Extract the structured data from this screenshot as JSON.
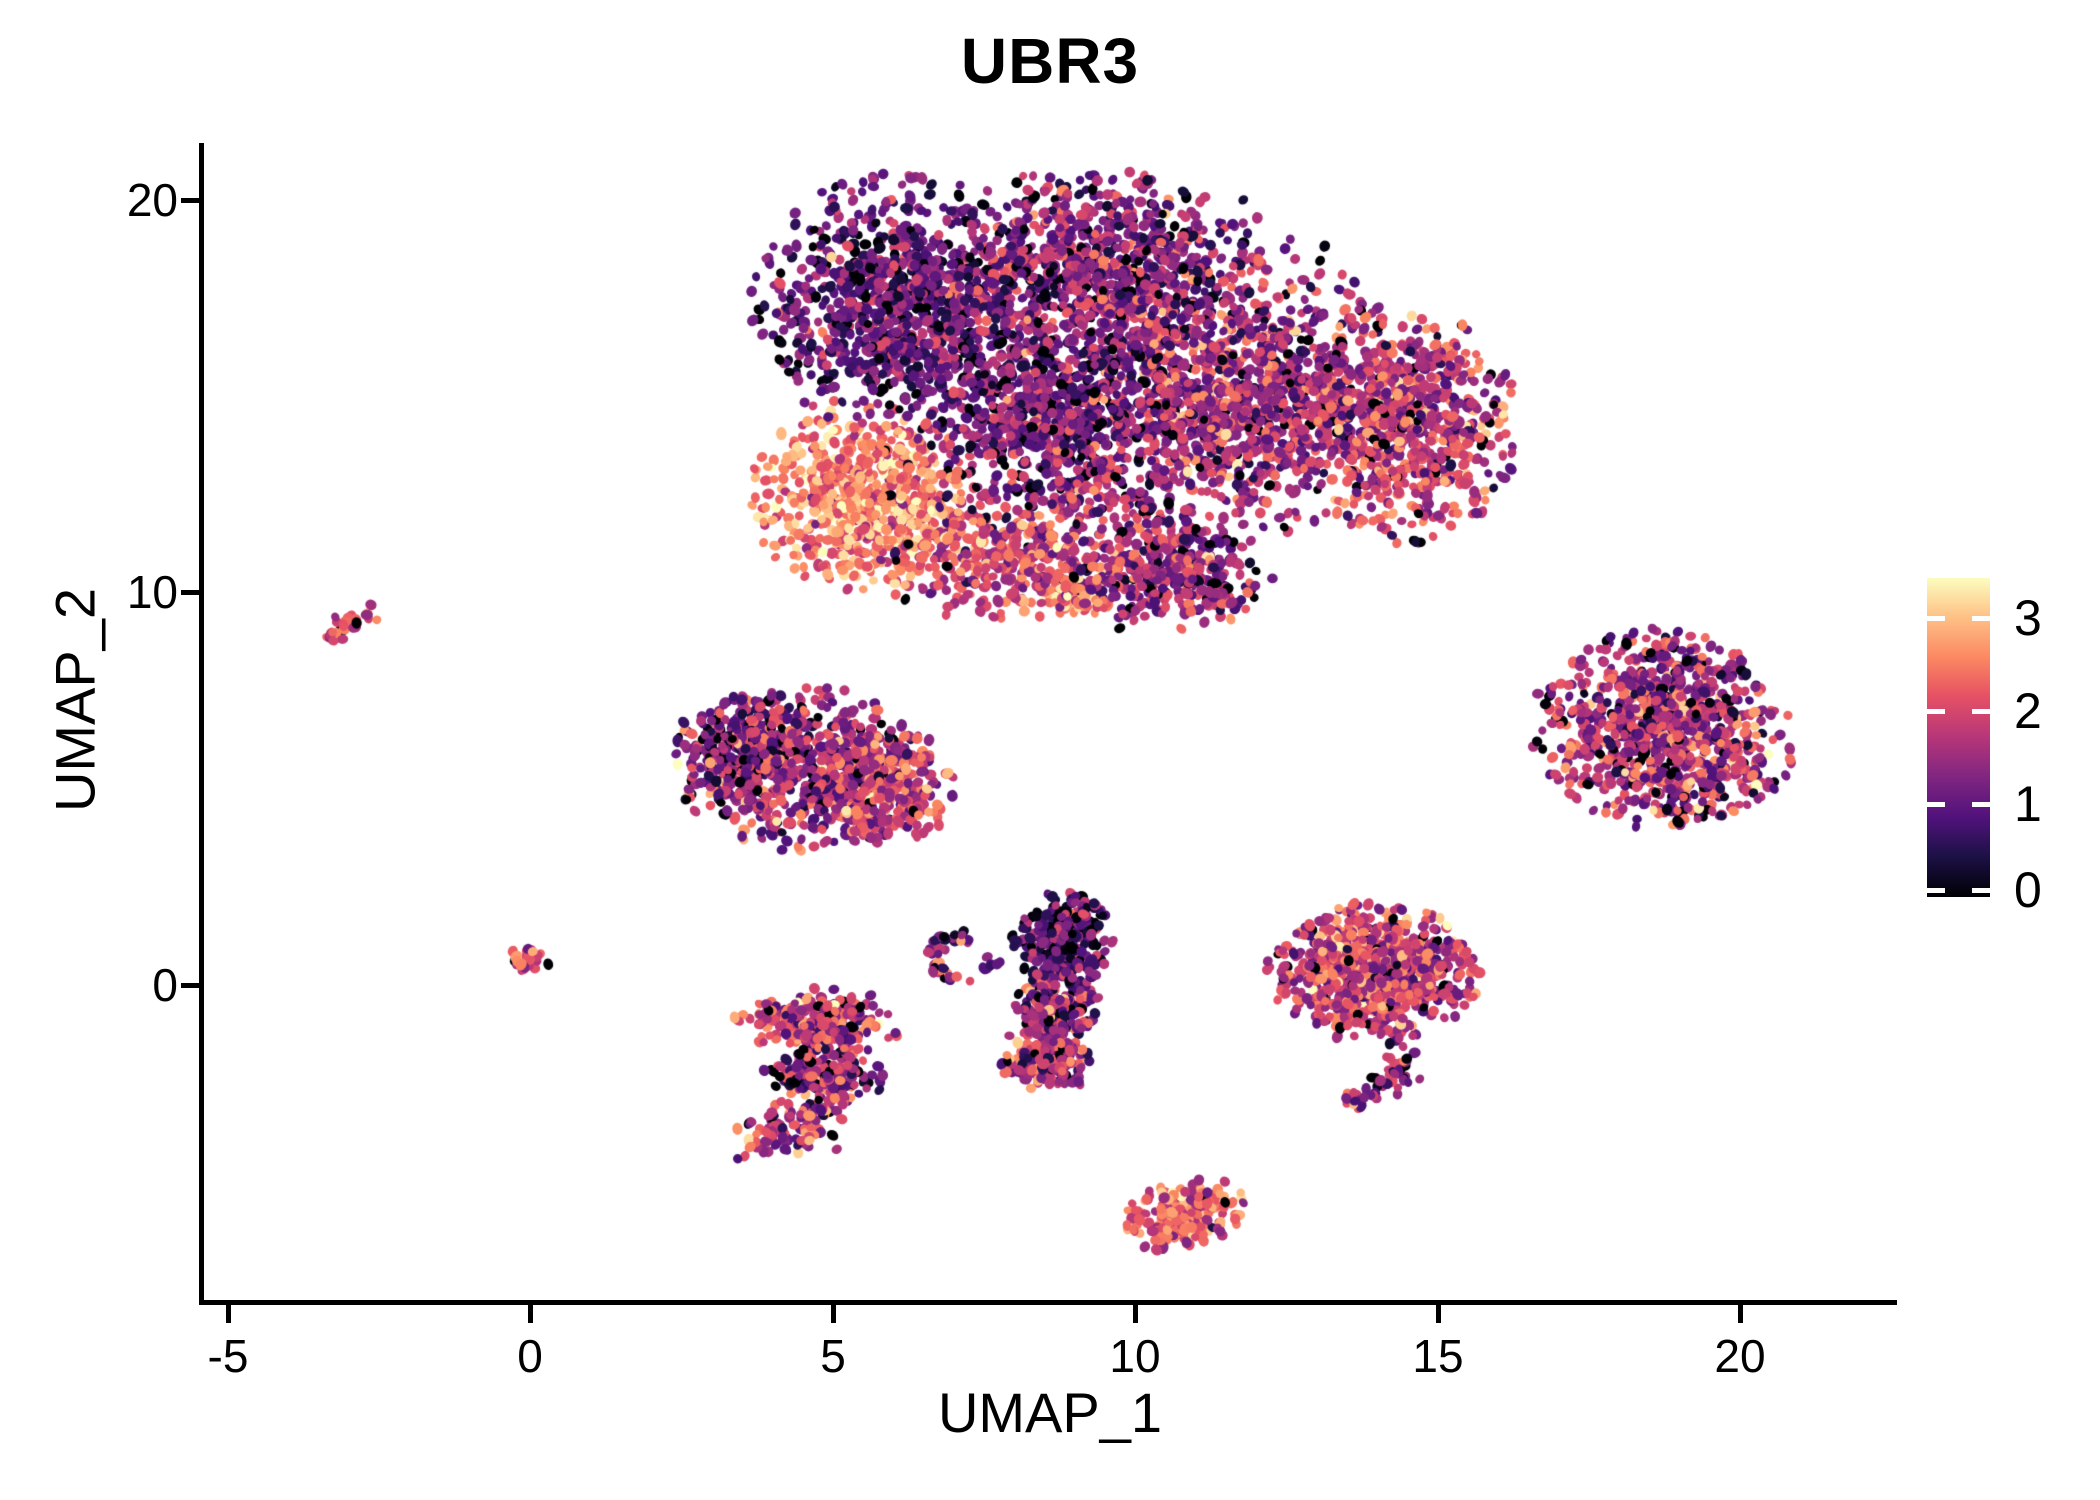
{
  "title": "UBR3",
  "axes": {
    "x": {
      "label": "UMAP_1",
      "tick_labels": [
        "-5",
        "0",
        "5",
        "10",
        "15",
        "20"
      ]
    },
    "y": {
      "label": "UMAP_2",
      "tick_labels": [
        "20",
        "10",
        "0"
      ]
    }
  },
  "colorbar": {
    "tick_labels": [
      "3",
      "2",
      "1",
      "0"
    ],
    "tick_values": [
      3,
      2,
      1,
      0
    ]
  },
  "colors": {
    "background": "#ffffff",
    "axis": "#000000",
    "text": "#000000",
    "colorbar_tick": "#ffffff"
  },
  "chart_data": {
    "type": "scatter",
    "title": "UBR3",
    "xlabel": "UMAP_1",
    "ylabel": "UMAP_2",
    "xlim": [
      -5.4,
      22.56
    ],
    "ylim": [
      -8.08,
      21.4
    ],
    "x_ticks": [
      -5,
      0,
      5,
      10,
      15,
      20
    ],
    "y_ticks": [
      0,
      10,
      20
    ],
    "grid": false,
    "legend": {
      "position": "right",
      "title": "",
      "ticks": [
        0,
        1,
        2,
        3
      ],
      "vmin": 0,
      "vmax": 3.43,
      "colormap": "magma",
      "stops": [
        [
          0,
          "#000004"
        ],
        [
          0.13,
          "#1d1147"
        ],
        [
          0.25,
          "#51127c"
        ],
        [
          0.38,
          "#822681"
        ],
        [
          0.5,
          "#b63679"
        ],
        [
          0.63,
          "#e65164"
        ],
        [
          0.75,
          "#fb8861"
        ],
        [
          0.88,
          "#fec287"
        ],
        [
          1,
          "#fcfdbf"
        ]
      ]
    },
    "point_style": {
      "radius_px": 4.5,
      "shape": "ellipse"
    },
    "clusters": [
      {
        "name": "main-upper-body",
        "components": [
          {
            "kind": "blob",
            "x": 6.1,
            "y": 17.4,
            "rx": 2.2,
            "ry": 3.0,
            "n": 900,
            "mean": 1.0,
            "sd": 0.55,
            "p0": 0.07
          },
          {
            "kind": "blob",
            "x": 9.4,
            "y": 18.3,
            "rx": 2.5,
            "ry": 2.2,
            "n": 700,
            "mean": 1.3,
            "sd": 0.6,
            "p0": 0.06
          },
          {
            "kind": "blob",
            "x": 11.9,
            "y": 14.9,
            "rx": 3.0,
            "ry": 3.3,
            "n": 1150,
            "mean": 1.6,
            "sd": 0.6,
            "p0": 0.05
          },
          {
            "kind": "blob",
            "x": 14.6,
            "y": 14.2,
            "rx": 1.6,
            "ry": 2.7,
            "n": 650,
            "mean": 1.8,
            "sd": 0.6,
            "p0": 0.04
          },
          {
            "kind": "blob",
            "x": 8.6,
            "y": 14.4,
            "rx": 2.0,
            "ry": 2.8,
            "n": 600,
            "mean": 1.15,
            "sd": 0.6,
            "p0": 0.08
          },
          {
            "kind": "blob",
            "x": 5.5,
            "y": 12.4,
            "rx": 1.7,
            "ry": 2.1,
            "n": 680,
            "mean": 2.55,
            "sd": 0.5,
            "p0": 0.01
          },
          {
            "kind": "blob",
            "x": 7.8,
            "y": 10.9,
            "rx": 2.0,
            "ry": 1.5,
            "n": 340,
            "mean": 2.0,
            "sd": 0.55,
            "p0": 0.03
          },
          {
            "kind": "blob",
            "x": 10.3,
            "y": 10.4,
            "rx": 1.7,
            "ry": 1.3,
            "n": 300,
            "mean": 1.5,
            "sd": 0.6,
            "p0": 0.06
          },
          {
            "kind": "blob",
            "x": 9.1,
            "y": 16.2,
            "rx": 4.3,
            "ry": 4.6,
            "n": 520,
            "mean": 1.35,
            "sd": 0.7,
            "p0": 0.07
          },
          {
            "kind": "blob",
            "x": 9.0,
            "y": 9.9,
            "rx": 0.6,
            "ry": 0.5,
            "n": 60,
            "mean": 2.7,
            "sd": 0.4,
            "p0": 0.0
          },
          {
            "kind": "streak",
            "pts": [
              [
                9.1,
                13.1
              ],
              [
                10.4,
                11.5
              ],
              [
                11.7,
                9.8
              ]
            ],
            "w": 0.5,
            "n": 130,
            "mean": 1.5,
            "sd": 0.7,
            "p0": 0.05
          }
        ]
      },
      {
        "name": "left-streak",
        "components": [
          {
            "kind": "streak",
            "pts": [
              [
                -3.3,
                8.85
              ],
              [
                -2.62,
                9.6
              ]
            ],
            "w": 0.18,
            "n": 30,
            "mean": 2.2,
            "sd": 0.65,
            "p0": 0.03
          }
        ]
      },
      {
        "name": "mid-left-cluster",
        "components": [
          {
            "kind": "blob",
            "x": 4.55,
            "y": 5.5,
            "rx": 2.0,
            "ry": 1.9,
            "n": 750,
            "mean": 1.6,
            "sd": 0.65,
            "p0": 0.06
          },
          {
            "kind": "blob",
            "x": 3.5,
            "y": 6.1,
            "rx": 1.0,
            "ry": 1.2,
            "n": 220,
            "mean": 1.1,
            "sd": 0.6,
            "p0": 0.1
          },
          {
            "kind": "blob",
            "x": 5.9,
            "y": 5.0,
            "rx": 1.0,
            "ry": 1.3,
            "n": 230,
            "mean": 2.0,
            "sd": 0.55,
            "p0": 0.02
          }
        ]
      },
      {
        "name": "small-left-blob",
        "components": [
          {
            "kind": "blob",
            "x": 0.0,
            "y": 0.62,
            "rx": 0.42,
            "ry": 0.32,
            "n": 26,
            "mean": 2.1,
            "sd": 0.55,
            "p0": 0.04
          }
        ]
      },
      {
        "name": "lower-left-cluster",
        "components": [
          {
            "kind": "blob",
            "x": 4.75,
            "y": -0.95,
            "rx": 1.3,
            "ry": 0.78,
            "n": 260,
            "mean": 1.85,
            "sd": 0.6,
            "p0": 0.05
          },
          {
            "kind": "blob",
            "x": 4.85,
            "y": -2.3,
            "rx": 0.95,
            "ry": 0.72,
            "n": 160,
            "mean": 1.35,
            "sd": 0.7,
            "p0": 0.08
          },
          {
            "kind": "streak",
            "pts": [
              [
                3.75,
                -4.1
              ],
              [
                4.5,
                -3.4
              ],
              [
                5.1,
                -2.75
              ]
            ],
            "w": 0.45,
            "n": 120,
            "mean": 1.7,
            "sd": 0.7,
            "p0": 0.05
          }
        ]
      },
      {
        "name": "small-arc-cluster",
        "components": [
          {
            "kind": "arc",
            "x": 7.05,
            "y": 0.7,
            "rx": 0.38,
            "ry": 0.55,
            "a0": 60,
            "a1": 300,
            "n": 40,
            "mean": 1.3,
            "sd": 0.7,
            "p0": 0.08
          },
          {
            "kind": "streak",
            "pts": [
              [
                7.42,
                0.45
              ],
              [
                7.75,
                0.6
              ]
            ],
            "w": 0.12,
            "n": 7,
            "mean": 1.0,
            "sd": 0.5,
            "p0": 0.1
          }
        ]
      },
      {
        "name": "mid-vertical-cluster",
        "components": [
          {
            "kind": "blob",
            "x": 8.8,
            "y": 1.15,
            "rx": 0.75,
            "ry": 1.1,
            "n": 270,
            "mean": 0.9,
            "sd": 0.65,
            "p0": 0.13
          },
          {
            "kind": "blob",
            "x": 8.72,
            "y": -0.6,
            "rx": 0.7,
            "ry": 0.95,
            "n": 210,
            "mean": 1.4,
            "sd": 0.7,
            "p0": 0.05
          },
          {
            "kind": "blob",
            "x": 8.55,
            "y": -1.9,
            "rx": 0.78,
            "ry": 0.8,
            "n": 170,
            "mean": 1.65,
            "sd": 0.6,
            "p0": 0.04
          }
        ]
      },
      {
        "name": "right-mid-cluster",
        "components": [
          {
            "kind": "blob",
            "x": 13.95,
            "y": 0.35,
            "rx": 1.6,
            "ry": 1.6,
            "n": 850,
            "mean": 1.9,
            "sd": 0.6,
            "p0": 0.04
          },
          {
            "kind": "streak",
            "pts": [
              [
                14.35,
                -1.5
              ],
              [
                14.45,
                -2.1
              ],
              [
                14.1,
                -2.6
              ],
              [
                13.6,
                -2.9
              ]
            ],
            "w": 0.25,
            "n": 55,
            "mean": 1.6,
            "sd": 0.6,
            "p0": 0.05
          }
        ]
      },
      {
        "name": "bottom-cluster",
        "components": [
          {
            "kind": "blob",
            "x": 10.8,
            "y": -5.85,
            "rx": 1.0,
            "ry": 0.75,
            "rot": 35,
            "n": 230,
            "mean": 2.2,
            "sd": 0.5,
            "p0": 0.02
          }
        ]
      },
      {
        "name": "far-right-cluster",
        "components": [
          {
            "kind": "blob",
            "x": 18.7,
            "y": 6.5,
            "rx": 2.0,
            "ry": 2.35,
            "rot": 12,
            "n": 950,
            "mean": 1.6,
            "sd": 0.68,
            "p0": 0.05
          }
        ]
      }
    ]
  }
}
